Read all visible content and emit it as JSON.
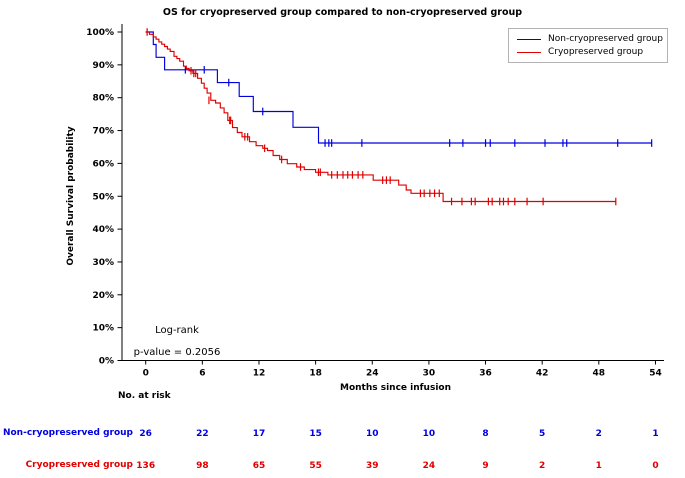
{
  "title": "OS for cryopreserved group compared to non-cryopreserved group",
  "legend": {
    "items": [
      {
        "label": "Non-cryopreserved group",
        "color": "#0000e0"
      },
      {
        "label": "Cryopreserved group",
        "color": "#e00000"
      }
    ]
  },
  "annotation": {
    "line1": "Log-rank",
    "line2": "p-value = 0.2056"
  },
  "chart_data": {
    "type": "line",
    "subtype": "kaplan-meier-step-curves",
    "title": "OS for cryopreserved group compared to non-cryopreserved group",
    "xlabel": "Months since infusion",
    "ylabel": "Overall Survival probability",
    "xlim": [
      0,
      54
    ],
    "ylim": [
      0,
      100
    ],
    "x_ticks": [
      0,
      6,
      12,
      18,
      24,
      30,
      36,
      42,
      48,
      54
    ],
    "y_ticks": [
      0,
      10,
      20,
      30,
      40,
      50,
      60,
      70,
      80,
      90,
      100
    ],
    "y_tick_suffix": "%",
    "grid": false,
    "legend_position": "top-right",
    "series": [
      {
        "name": "Non-cryopreserved group",
        "color": "#0000e0",
        "start_value": 100,
        "end_time": 53.6,
        "steps": [
          [
            0.8,
            96.2
          ],
          [
            1.1,
            92.3
          ],
          [
            2.0,
            88.5
          ],
          [
            7.6,
            84.6
          ],
          [
            9.9,
            80.4
          ],
          [
            11.4,
            75.8
          ],
          [
            15.6,
            71.0
          ],
          [
            18.3,
            66.2
          ]
        ],
        "censor_marks": [
          [
            4.2,
            88.5
          ],
          [
            6.2,
            88.5
          ],
          [
            8.8,
            84.6
          ],
          [
            12.4,
            75.8
          ],
          [
            19.0,
            66.2
          ],
          [
            19.4,
            66.2
          ],
          [
            19.7,
            66.2
          ],
          [
            22.9,
            66.2
          ],
          [
            32.2,
            66.2
          ],
          [
            33.6,
            66.2
          ],
          [
            36.0,
            66.2
          ],
          [
            36.5,
            66.2
          ],
          [
            39.1,
            66.2
          ],
          [
            42.3,
            66.2
          ],
          [
            44.2,
            66.2
          ],
          [
            44.6,
            66.2
          ],
          [
            50.0,
            66.2
          ],
          [
            53.6,
            66.2
          ]
        ]
      },
      {
        "name": "Cryopreserved group",
        "color": "#e00000",
        "start_value": 100,
        "end_time": 49.8,
        "steps": [
          [
            0.4,
            99.3
          ],
          [
            0.8,
            98.5
          ],
          [
            1.1,
            97.8
          ],
          [
            1.4,
            97.0
          ],
          [
            1.7,
            96.3
          ],
          [
            2.0,
            95.6
          ],
          [
            2.3,
            94.8
          ],
          [
            2.6,
            94.1
          ],
          [
            3.0,
            92.6
          ],
          [
            3.3,
            91.9
          ],
          [
            3.6,
            91.1
          ],
          [
            4.0,
            89.6
          ],
          [
            4.3,
            88.9
          ],
          [
            4.6,
            88.2
          ],
          [
            5.0,
            87.4
          ],
          [
            5.5,
            85.9
          ],
          [
            5.9,
            84.4
          ],
          [
            6.2,
            82.9
          ],
          [
            6.5,
            81.4
          ],
          [
            6.9,
            79.2
          ],
          [
            7.4,
            78.4
          ],
          [
            7.9,
            76.9
          ],
          [
            8.3,
            75.4
          ],
          [
            8.7,
            73.1
          ],
          [
            9.2,
            70.9
          ],
          [
            9.7,
            69.4
          ],
          [
            10.2,
            68.1
          ],
          [
            11.0,
            66.6
          ],
          [
            11.7,
            65.4
          ],
          [
            12.4,
            64.6
          ],
          [
            12.9,
            63.9
          ],
          [
            13.5,
            62.4
          ],
          [
            14.2,
            61.2
          ],
          [
            15.0,
            59.9
          ],
          [
            16.0,
            58.9
          ],
          [
            16.8,
            58.1
          ],
          [
            18.0,
            57.3
          ],
          [
            19.3,
            56.5
          ],
          [
            24.1,
            54.9
          ],
          [
            26.8,
            53.4
          ],
          [
            27.6,
            51.9
          ],
          [
            28.1,
            50.9
          ],
          [
            31.5,
            48.4
          ]
        ],
        "censor_marks": [
          [
            0.15,
            100
          ],
          [
            4.8,
            88.2
          ],
          [
            5.1,
            87.4
          ],
          [
            5.3,
            87.4
          ],
          [
            6.7,
            79.2
          ],
          [
            8.9,
            73.1
          ],
          [
            9.0,
            73.1
          ],
          [
            10.5,
            68.1
          ],
          [
            10.8,
            68.1
          ],
          [
            12.6,
            64.6
          ],
          [
            14.4,
            61.2
          ],
          [
            16.4,
            58.9
          ],
          [
            18.3,
            57.3
          ],
          [
            18.5,
            57.3
          ],
          [
            19.7,
            56.5
          ],
          [
            20.3,
            56.5
          ],
          [
            20.9,
            56.5
          ],
          [
            21.4,
            56.5
          ],
          [
            21.9,
            56.5
          ],
          [
            22.5,
            56.5
          ],
          [
            23.0,
            56.5
          ],
          [
            25.1,
            54.9
          ],
          [
            25.5,
            54.9
          ],
          [
            25.9,
            54.9
          ],
          [
            29.1,
            50.9
          ],
          [
            29.5,
            50.9
          ],
          [
            30.1,
            50.9
          ],
          [
            30.6,
            50.9
          ],
          [
            31.1,
            50.9
          ],
          [
            32.4,
            48.4
          ],
          [
            33.5,
            48.4
          ],
          [
            34.5,
            48.4
          ],
          [
            34.9,
            48.4
          ],
          [
            36.3,
            48.4
          ],
          [
            36.7,
            48.4
          ],
          [
            37.5,
            48.4
          ],
          [
            37.9,
            48.4
          ],
          [
            38.4,
            48.4
          ],
          [
            39.1,
            48.4
          ],
          [
            40.4,
            48.4
          ],
          [
            42.1,
            48.4
          ],
          [
            49.8,
            48.4
          ]
        ]
      }
    ],
    "annotation": [
      "Log-rank",
      "p-value = 0.2056"
    ],
    "risk_table": {
      "heading": "No. at risk",
      "columns": [
        0,
        6,
        12,
        18,
        24,
        30,
        36,
        42,
        48,
        54
      ],
      "rows": [
        {
          "name": "Non-cryopreserved group",
          "color": "#0000e0",
          "values": [
            26,
            22,
            17,
            15,
            10,
            10,
            8,
            5,
            2,
            1
          ]
        },
        {
          "name": "Cryopreserved group",
          "color": "#e00000",
          "values": [
            136,
            98,
            65,
            55,
            39,
            24,
            9,
            2,
            1,
            0
          ]
        }
      ]
    }
  }
}
